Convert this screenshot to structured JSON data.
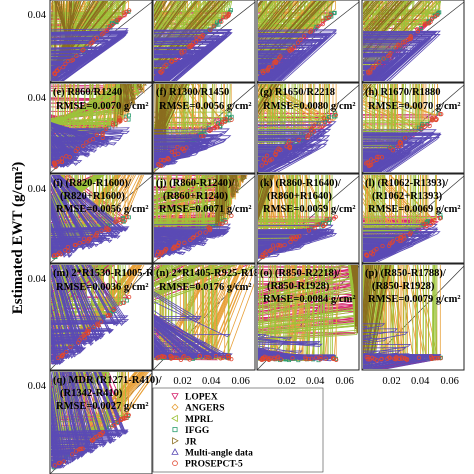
{
  "chart_data": {
    "type": "scatter",
    "ylabel": "Estimated EWT (g/cm²)",
    "xlim": [
      0,
      0.07
    ],
    "ylim": [
      0,
      0.06
    ],
    "xticks": [
      "0.02",
      "0.04",
      "0.06"
    ],
    "yticks": [
      "0.04"
    ],
    "grid": false,
    "legend_position": "bottom-right",
    "legend": [
      {
        "name": "LOPEX",
        "marker": "triangle-down",
        "color": "#d6246e"
      },
      {
        "name": "ANGERS",
        "marker": "diamond",
        "color": "#e8a13a"
      },
      {
        "name": "MPRL",
        "marker": "triangle-left",
        "color": "#9cc33b"
      },
      {
        "name": "IFGG",
        "marker": "square",
        "color": "#2a9d6e"
      },
      {
        "name": "JR",
        "marker": "triangle-right",
        "color": "#8a6d1f"
      },
      {
        "name": "Multi-angle data",
        "marker": "triangle-up",
        "color": "#5b4bb5"
      },
      {
        "name": "PROSEPCT-5",
        "marker": "circle",
        "color": "#e0462f"
      }
    ],
    "panels": [
      {
        "id": "a",
        "title": "",
        "rmse": "",
        "pattern": "tight"
      },
      {
        "id": "b",
        "title": "",
        "rmse": "",
        "pattern": "tight"
      },
      {
        "id": "c",
        "title": "",
        "rmse": "",
        "pattern": "tight"
      },
      {
        "id": "d",
        "title": "",
        "rmse": "",
        "pattern": "tight"
      },
      {
        "id": "e",
        "title": "(e)  R860/R1240",
        "rmse": "RMSE=0.0070 g/cm²",
        "pattern": "scatter"
      },
      {
        "id": "f",
        "title": "(f)  R1300/R1450",
        "rmse": "RMSE=0.0056 g/cm²",
        "pattern": "scatter"
      },
      {
        "id": "g",
        "title": "(g)  R1650/R2218",
        "rmse": "RMSE=0.0080 g/cm²",
        "pattern": "wide"
      },
      {
        "id": "h",
        "title": "(h)  R1670/R1880",
        "rmse": "RMSE=0.0070 g/cm²",
        "pattern": "scatter"
      },
      {
        "id": "i",
        "title": "(i)  (R820-R1600)/",
        "title2": "(R820+R1600)",
        "rmse": "RMSE=0.0056 g/cm²",
        "pattern": "scatter"
      },
      {
        "id": "j",
        "title": "(j)  (R860-R1240)/",
        "title2": "(R860+R1240)",
        "rmse": "RMSE=0.0071 g/cm²",
        "pattern": "scatter"
      },
      {
        "id": "k",
        "title": "(k)  (R860-R1640)/",
        "title2": "(R860+R1640)",
        "rmse": "RMSE=0.0059 g/cm²",
        "pattern": "scatter"
      },
      {
        "id": "l",
        "title": "(l)  (R1062-R1393)/",
        "title2": "(R1062+R1393)",
        "rmse": "RMSE=0.0069 g/cm²",
        "pattern": "scatter"
      },
      {
        "id": "m",
        "title": "(m)  2*R1530-R1005-R2055",
        "rmse": "RMSE=0.0036 g/cm²",
        "pattern": "tight"
      },
      {
        "id": "n",
        "title": "(n)  2*R1405-R925-R1885",
        "rmse": "RMSE=0.0176 g/cm²",
        "pattern": "flat"
      },
      {
        "id": "o",
        "title": "(o)  (R850-R2218)/",
        "title2": "(R850-R1928)",
        "rmse": "RMSE=0.0084 g/cm²",
        "pattern": "flat"
      },
      {
        "id": "p",
        "title": "(p)  (R850-R1788)/",
        "title2": "(R850-R1928)",
        "rmse": "RMSE=0.0079 g/cm²",
        "pattern": "flat"
      },
      {
        "id": "q",
        "title": "(q)  MDR (R1271-R410)/",
        "title2": "(R1342-R410)",
        "rmse": "RMSE=0.0027 g/cm²",
        "pattern": "tight"
      }
    ]
  }
}
